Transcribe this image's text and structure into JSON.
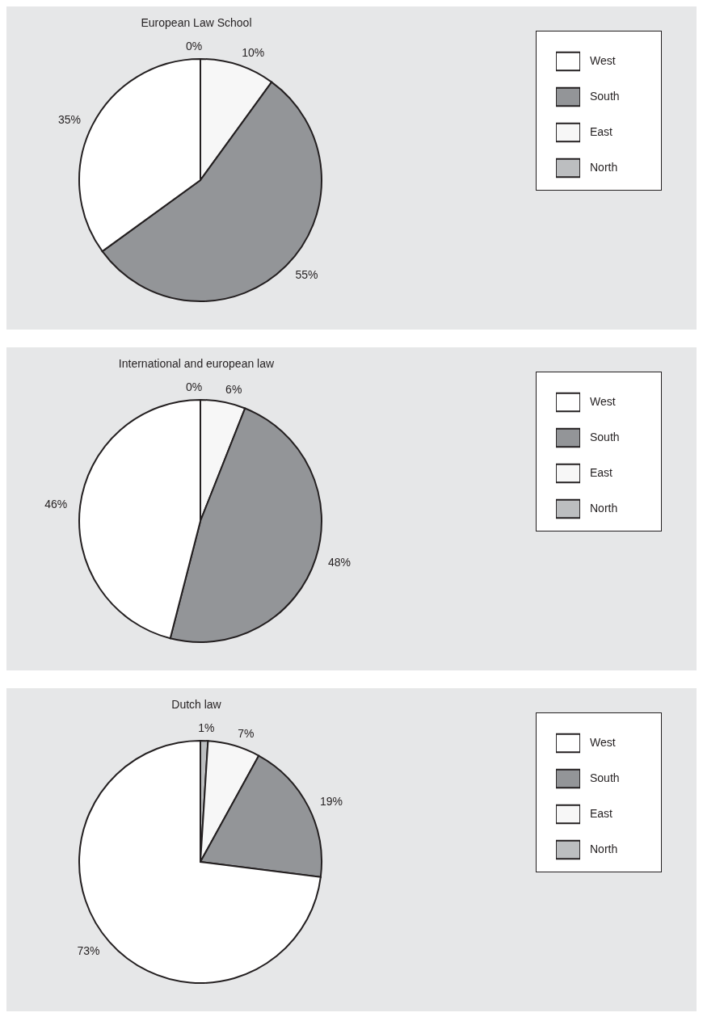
{
  "chart_data": [
    {
      "type": "pie",
      "title": "European Law School",
      "categories": [
        "North",
        "East",
        "South",
        "West"
      ],
      "values": [
        0,
        10,
        55,
        35
      ],
      "value_labels": [
        "0%",
        "10%",
        "55%",
        "35%"
      ],
      "colors": [
        "#bcbec0",
        "#f7f7f7",
        "#939598",
        "#ffffff"
      ],
      "legend": "right"
    },
    {
      "type": "pie",
      "title": "International and european law",
      "categories": [
        "North",
        "East",
        "South",
        "West"
      ],
      "values": [
        0,
        6,
        48,
        46
      ],
      "value_labels": [
        "0%",
        "6%",
        "48%",
        "46%"
      ],
      "colors": [
        "#bcbec0",
        "#f7f7f7",
        "#939598",
        "#ffffff"
      ],
      "legend": "right"
    },
    {
      "type": "pie",
      "title": "Dutch law",
      "categories": [
        "North",
        "East",
        "South",
        "West"
      ],
      "values": [
        1,
        7,
        19,
        73
      ],
      "value_labels": [
        "1%",
        "7%",
        "19%",
        "73%"
      ],
      "colors": [
        "#bcbec0",
        "#f7f7f7",
        "#939598",
        "#ffffff"
      ],
      "legend": "right"
    }
  ]
}
